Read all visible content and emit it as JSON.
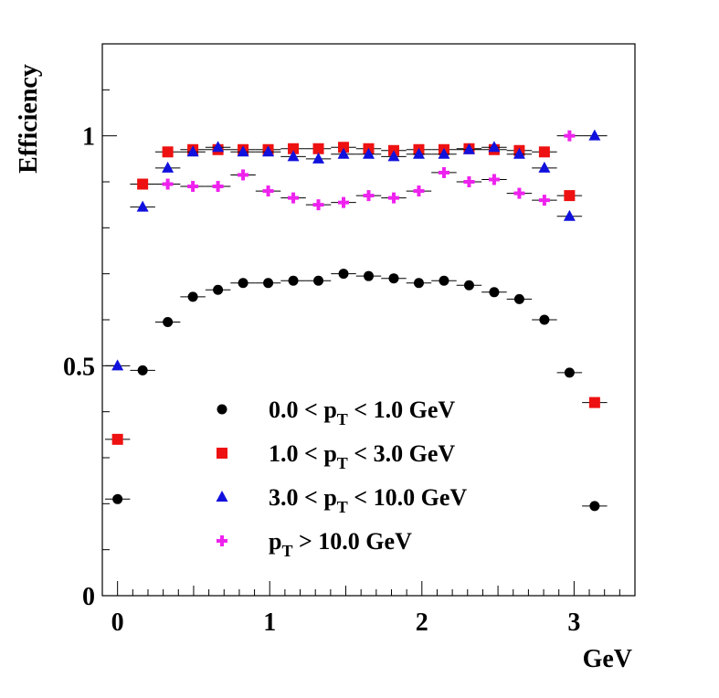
{
  "chart_data": {
    "type": "scatter",
    "title": "",
    "xlabel": "GeV",
    "ylabel": "Efficiency",
    "xlim": [
      -0.1,
      3.4
    ],
    "ylim": [
      0,
      1.2
    ],
    "x_ticks": [
      0,
      1,
      2,
      3
    ],
    "x_tick_labels": [
      "0",
      "1",
      "2",
      "3"
    ],
    "y_ticks": [
      0,
      0.5,
      1
    ],
    "y_tick_labels": [
      "0",
      "0.5",
      "1"
    ],
    "x": [
      0.0,
      0.165,
      0.33,
      0.495,
      0.66,
      0.825,
      0.99,
      1.155,
      1.32,
      1.485,
      1.65,
      1.815,
      1.98,
      2.145,
      2.31,
      2.475,
      2.64,
      2.805,
      2.97,
      3.135
    ],
    "x_error": 0.0825,
    "grid": false,
    "legend_position": "lower-center",
    "series": [
      {
        "name": "0.0 < p_T < 1.0 GeV",
        "label_main": "0.0 < p",
        "label_sub": "T",
        "label_tail": " < 1.0 GeV",
        "marker": "circle",
        "color": "#000000",
        "values": [
          0.21,
          0.49,
          0.595,
          0.65,
          0.665,
          0.68,
          0.68,
          0.685,
          0.685,
          0.7,
          0.695,
          0.69,
          0.68,
          0.685,
          0.675,
          0.66,
          0.645,
          0.6,
          0.485,
          0.195
        ]
      },
      {
        "name": "1.0 < p_T < 3.0 GeV",
        "label_main": "1.0 < p",
        "label_sub": "T",
        "label_tail": " < 3.0 GeV",
        "marker": "square",
        "color": "#ee1111",
        "values": [
          0.34,
          0.895,
          0.965,
          0.97,
          0.97,
          0.97,
          0.97,
          0.972,
          0.972,
          0.975,
          0.972,
          0.968,
          0.97,
          0.97,
          0.972,
          0.97,
          0.968,
          0.965,
          0.87,
          0.42
        ]
      },
      {
        "name": "3.0 < p_T < 10.0 GeV",
        "label_main": "3.0 < p",
        "label_sub": "T",
        "label_tail": " < 10.0 GeV",
        "marker": "triangle",
        "color": "#1111dd",
        "values": [
          0.5,
          0.845,
          0.93,
          0.965,
          0.975,
          0.965,
          0.965,
          0.955,
          0.95,
          0.96,
          0.96,
          0.955,
          0.96,
          0.96,
          0.97,
          0.975,
          0.96,
          0.93,
          0.825,
          1.0
        ]
      },
      {
        "name": "p_T > 10.0 GeV",
        "label_main": "p",
        "label_sub": "T",
        "label_tail": " > 10.0 GeV",
        "marker": "cross",
        "color": "#ee22ee",
        "values": [
          null,
          null,
          0.895,
          0.89,
          0.89,
          0.915,
          0.88,
          0.865,
          0.85,
          0.855,
          0.87,
          0.865,
          0.88,
          0.92,
          0.9,
          0.905,
          0.875,
          0.86,
          1.0,
          null
        ]
      }
    ]
  }
}
